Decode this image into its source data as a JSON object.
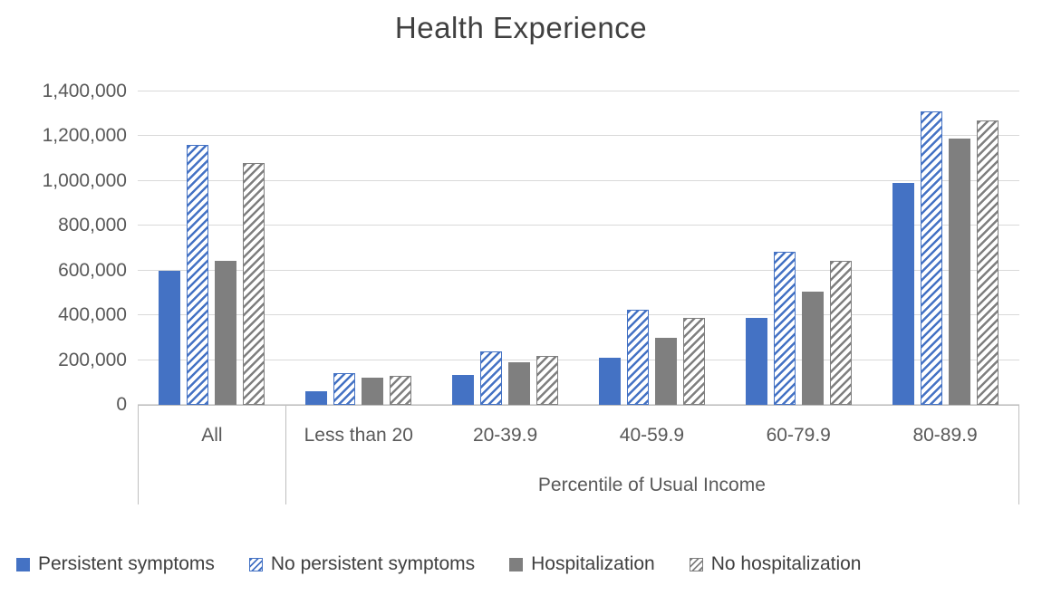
{
  "chart_data": {
    "type": "bar",
    "title": "Health Experience",
    "xlabel": "Percentile of Usual Income",
    "ylabel": "",
    "categories": [
      "All",
      "Less than 20",
      "20-39.9",
      "40-59.9",
      "60-79.9",
      "80-89.9"
    ],
    "series": [
      {
        "name": "Persistent symptoms",
        "pattern": "solid",
        "color": "#4472C4",
        "values": [
          600000,
          60000,
          135000,
          210000,
          390000,
          990000
        ]
      },
      {
        "name": "No persistent symptoms",
        "pattern": "hatch",
        "color": "#4472C4",
        "values": [
          1160000,
          140000,
          240000,
          425000,
          685000,
          1310000
        ]
      },
      {
        "name": "Hospitalization",
        "pattern": "solid",
        "color": "#7F7F7F",
        "values": [
          645000,
          120000,
          190000,
          300000,
          505000,
          1190000
        ]
      },
      {
        "name": "No hospitalization",
        "pattern": "hatch",
        "color": "#7F7F7F",
        "values": [
          1080000,
          130000,
          220000,
          390000,
          645000,
          1270000
        ]
      }
    ],
    "ylim": [
      0,
      1400000
    ],
    "ytick_step": 200000,
    "ytick_labels": [
      "0",
      "200,000",
      "400,000",
      "600,000",
      "800,000",
      "1,000,000",
      "1,200,000",
      "1,400,000"
    ],
    "grid": true,
    "legend_position": "bottom",
    "axis_group_label_for_first_category": ""
  },
  "colors": {
    "accent_blue": "#4472C4",
    "accent_gray": "#7F7F7F",
    "gridline": "#D9D9D9",
    "axis_line": "#BFBFBF",
    "tick_text": "#595959",
    "title_text": "#404040"
  }
}
